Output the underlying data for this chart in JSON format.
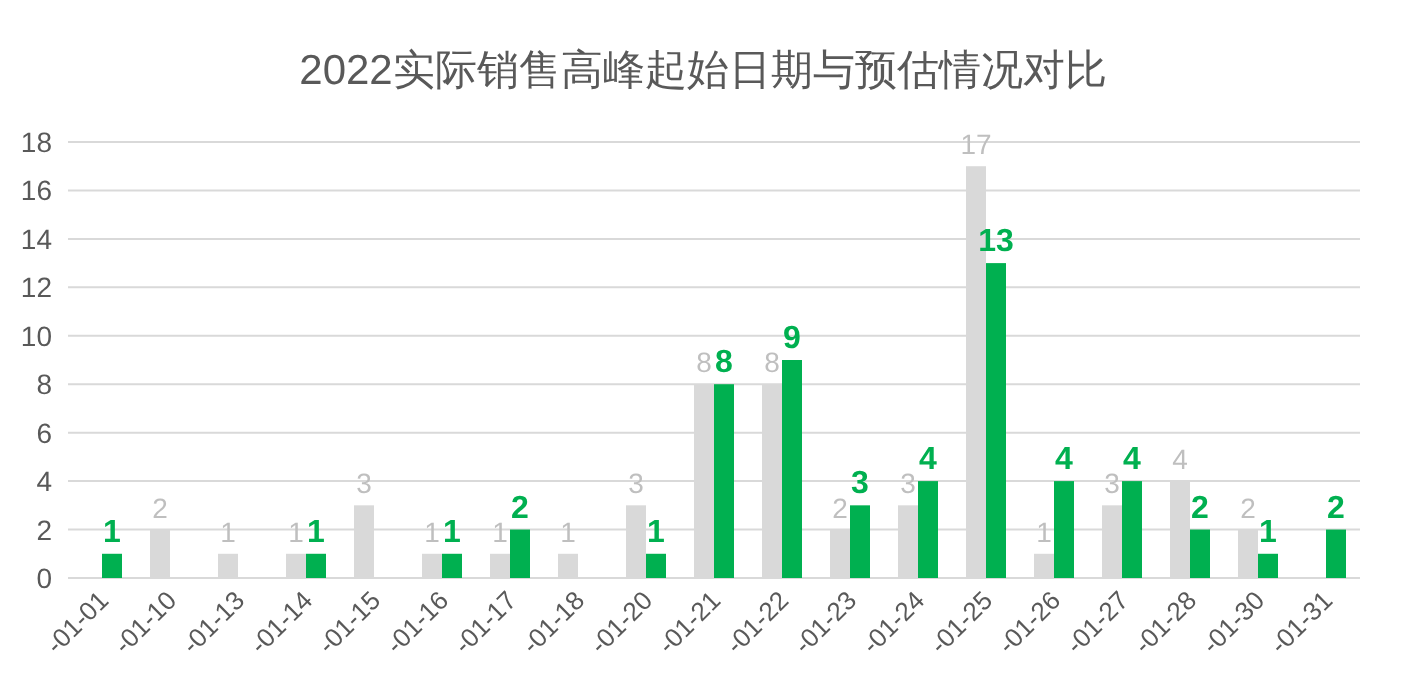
{
  "chart_data": {
    "type": "bar",
    "title": "2022实际销售高峰起始日期与预估情况对比",
    "categories": [
      "-01-01",
      "-01-10",
      "-01-13",
      "-01-14",
      "-01-15",
      "-01-16",
      "-01-17",
      "-01-18",
      "-01-20",
      "-01-21",
      "-01-22",
      "-01-23",
      "-01-24",
      "-01-25",
      "-01-26",
      "-01-27",
      "-01-28",
      "-01-30",
      "-01-31"
    ],
    "series": [
      {
        "color": "#d9d9d9",
        "values": [
          null,
          2,
          1,
          1,
          3,
          1,
          1,
          1,
          3,
          8,
          8,
          2,
          3,
          17,
          1,
          3,
          4,
          2,
          null
        ]
      },
      {
        "color": "#00b050",
        "values": [
          1,
          null,
          null,
          1,
          null,
          1,
          2,
          null,
          1,
          8,
          9,
          3,
          4,
          13,
          4,
          4,
          2,
          1,
          2
        ]
      }
    ],
    "ylim": [
      0,
      18
    ],
    "yticks": [
      0,
      2,
      4,
      6,
      8,
      10,
      12,
      14,
      16,
      18
    ],
    "grid": "y",
    "data_labels": true
  }
}
